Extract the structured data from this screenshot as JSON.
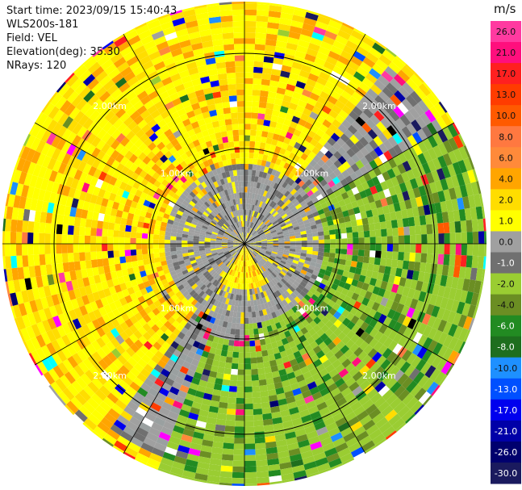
{
  "header": {
    "start_time": "Start time: 2023/09/15 15:40:43",
    "instrument": "WLS200s-181",
    "field": "Field: VEL",
    "elevation": "Elevation(deg): 35.30",
    "nrays": "NRays: 120"
  },
  "chart_data": {
    "type": "heatmap",
    "projection": "polar-ppi",
    "field": "VEL",
    "n_rays": 120,
    "range_rings_km": [
      1.0,
      2.0,
      3.0,
      4.0,
      5.0
    ],
    "range_labels": [
      "1.00km",
      "2.00km",
      "3.00km",
      "4.00km",
      "5.00km"
    ],
    "colorbar": {
      "unit": "m/s",
      "ticks": [
        "26.0",
        "21.0",
        "17.0",
        "13.0",
        "10.0",
        "8.0",
        "6.0",
        "4.0",
        "2.0",
        "1.0",
        "0.0",
        "-1.0",
        "-2.0",
        "-4.0",
        "-6.0",
        "-8.0",
        "-10.0",
        "-13.0",
        "-17.0",
        "-21.0",
        "-26.0",
        "-30.0"
      ],
      "colors": [
        "#ff3aa0",
        "#ff0f7d",
        "#ff2020",
        "#ff3c00",
        "#ff5a00",
        "#ff7840",
        "#ff8a3a",
        "#ffa500",
        "#ffdd00",
        "#ffff00",
        "#a0a0a0",
        "#707070",
        "#9acd32",
        "#6b8e23",
        "#228b22",
        "#1e6e1e",
        "#1e90ff",
        "#0050ff",
        "#0000ee",
        "#0000a8",
        "#00006e",
        "#1a1a5e"
      ]
    },
    "pattern": {
      "gray_zone_km": 0.85,
      "yellow_orange_sector_deg": [
        215,
        40
      ],
      "green_sector_deg": [
        60,
        200
      ],
      "clean_max_km": 2.4,
      "noise_start_km": 3.0
    }
  }
}
